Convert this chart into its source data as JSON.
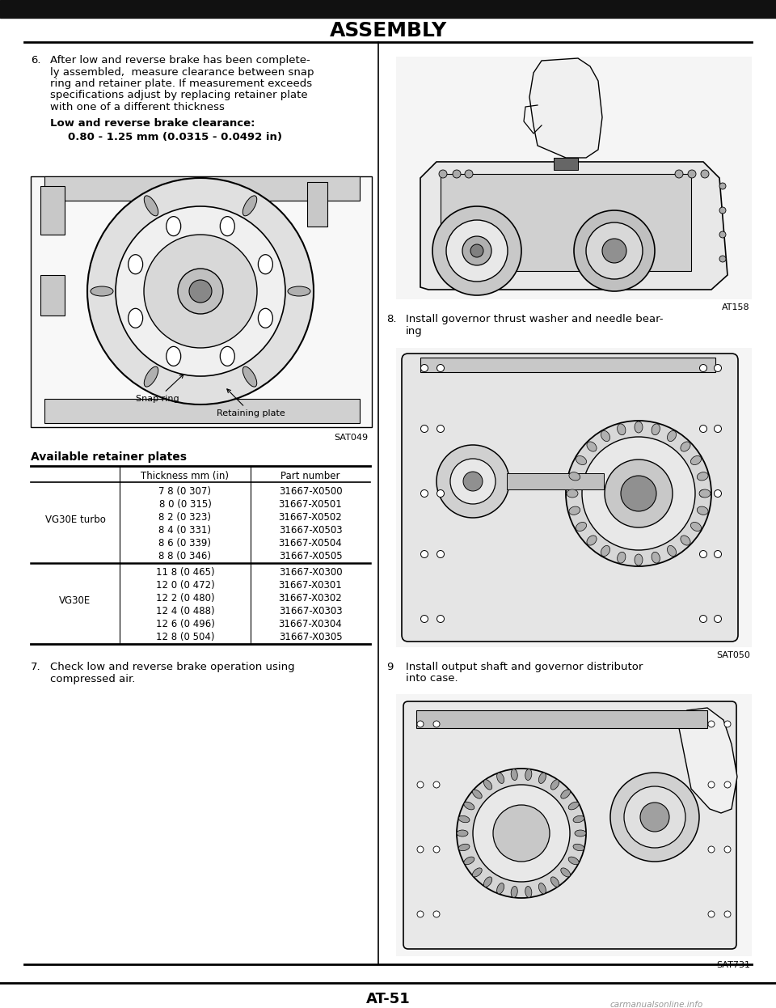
{
  "page_title": "ASSEMBLY",
  "page_number": "AT-51",
  "background_color": "#ffffff",
  "text_color": "#000000",
  "section6_text_lines": [
    "After low and reverse brake has been complete-",
    "ly assembled,  measure clearance between snap",
    "ring and retainer plate. If measurement exceeds",
    "specifications adjust by replacing retainer plate",
    "with one of a different thickness"
  ],
  "section6_bold_label": "Low and reverse brake clearance:",
  "section6_bold_value": "0.80 - 1.25 mm (0.0315 - 0.0492 in)",
  "diagram1_caption": "SAT049",
  "diagram1_snap_ring_label": "Snap ring",
  "diagram1_retaining_plate_label": "Retaining plate",
  "table_title": "Available retainer plates",
  "table_col2": "Thickness mm (in)",
  "table_col3": "Part number",
  "table_row_group1_label": "VG30E turbo",
  "table_row_group1": [
    [
      "7 8 (0 307)",
      "31667-X0500"
    ],
    [
      "8 0 (0 315)",
      "31667-X0501"
    ],
    [
      "8 2 (0 323)",
      "31667-X0502"
    ],
    [
      "8 4 (0 331)",
      "31667-X0503"
    ],
    [
      "8 6 (0 339)",
      "31667-X0504"
    ],
    [
      "8 8 (0 346)",
      "31667-X0505"
    ]
  ],
  "table_row_group2_label": "VG30E",
  "table_row_group2": [
    [
      "11 8 (0 465)",
      "31667-X0300"
    ],
    [
      "12 0 (0 472)",
      "31667-X0301"
    ],
    [
      "12 2 (0 480)",
      "31667-X0302"
    ],
    [
      "12 4 (0 488)",
      "31667-X0303"
    ],
    [
      "12 6 (0 496)",
      "31667-X0304"
    ],
    [
      "12 8 (0 504)",
      "31667-X0305"
    ]
  ],
  "section7_text_lines": [
    "Check low and reverse brake operation using",
    "compressed air."
  ],
  "section8_text_lines": [
    "Install governor thrust washer and needle bear-",
    "ing"
  ],
  "diagram2_caption": "AT158",
  "diagram3_caption": "SAT050",
  "section9_text_lines": [
    "Install output shaft and governor distributor",
    "into case."
  ],
  "diagram4_caption": "SAT731",
  "watermark": "carmanualsonline.info"
}
